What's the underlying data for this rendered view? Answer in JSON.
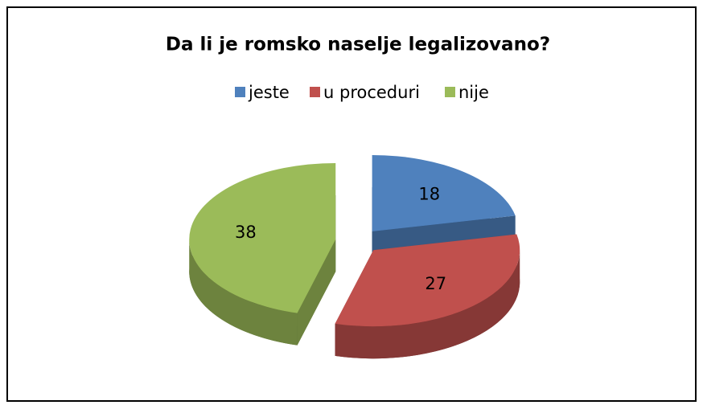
{
  "chart_data": {
    "type": "pie",
    "title": "Da li je romsko naselje legalizovano?",
    "categories": [
      "jeste",
      "u proceduri",
      "nije"
    ],
    "values": [
      18,
      27,
      38
    ],
    "colors": [
      "#4f81bd",
      "#c0504d",
      "#9bbb59"
    ],
    "legend": "top"
  }
}
